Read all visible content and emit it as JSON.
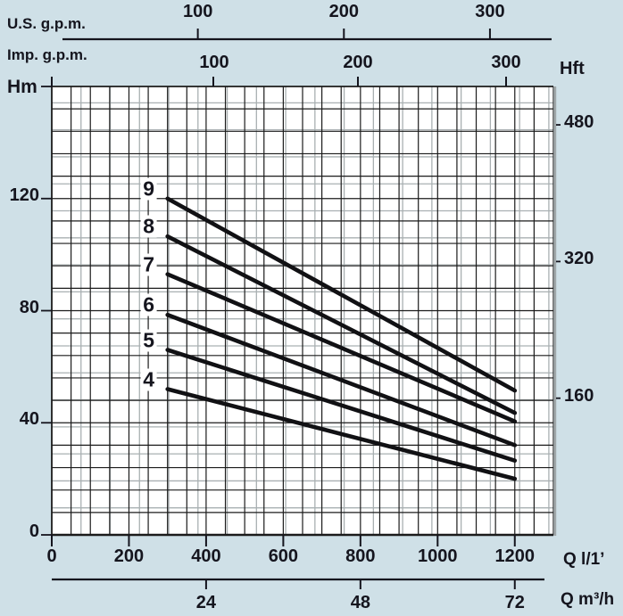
{
  "colors": {
    "background": "#cfe0e7",
    "plot_background": "#ffffff",
    "grid_primary": "#1b1b1b",
    "grid_secondary": "#a9b0b2",
    "right_edge": "#9fa6a8",
    "axis": "#15151e",
    "curve": "#111114",
    "text": "#15151e"
  },
  "chart_data": {
    "type": "line",
    "top_axis_primary_label": "U.S. g.p.m.",
    "top_axis_secondary_label": "Imp. g.p.m.",
    "ylabel": "Hm",
    "ylabel_secondary": "Hft",
    "xlabel": "Q l/1’",
    "xlabel_secondary": "Q m³/h",
    "x_ticks_us_gpm": [
      100,
      200,
      300
    ],
    "x_ticks_imp_gpm": [
      100,
      200,
      300
    ],
    "y_ticks_hm": [
      0,
      40,
      80,
      120
    ],
    "y_ticks_hft": [
      160,
      320,
      480
    ],
    "x_ticks_l_min": [
      0,
      200,
      400,
      600,
      800,
      1000,
      1200
    ],
    "x_ticks_m3h": [
      24,
      48,
      72
    ],
    "x_range_l_min": [
      0,
      1300
    ],
    "y_range_hm": [
      0,
      160
    ],
    "grid": "on",
    "legend_position": "curve-start-labels",
    "series": [
      {
        "name": "9",
        "points_q_hm": [
          [
            300,
            120.0
          ],
          [
            1200,
            51.5
          ]
        ]
      },
      {
        "name": "8",
        "points_q_hm": [
          [
            300,
            106.5
          ],
          [
            1200,
            43.5
          ]
        ]
      },
      {
        "name": "7",
        "points_q_hm": [
          [
            300,
            93.0
          ],
          [
            1200,
            40.5
          ]
        ]
      },
      {
        "name": "6",
        "points_q_hm": [
          [
            300,
            78.5
          ],
          [
            1200,
            32.0
          ]
        ]
      },
      {
        "name": "5",
        "points_q_hm": [
          [
            300,
            66.0
          ],
          [
            1200,
            26.5
          ]
        ]
      },
      {
        "name": "4",
        "points_q_hm": [
          [
            300,
            52.0
          ],
          [
            1200,
            20.0
          ]
        ]
      }
    ]
  }
}
